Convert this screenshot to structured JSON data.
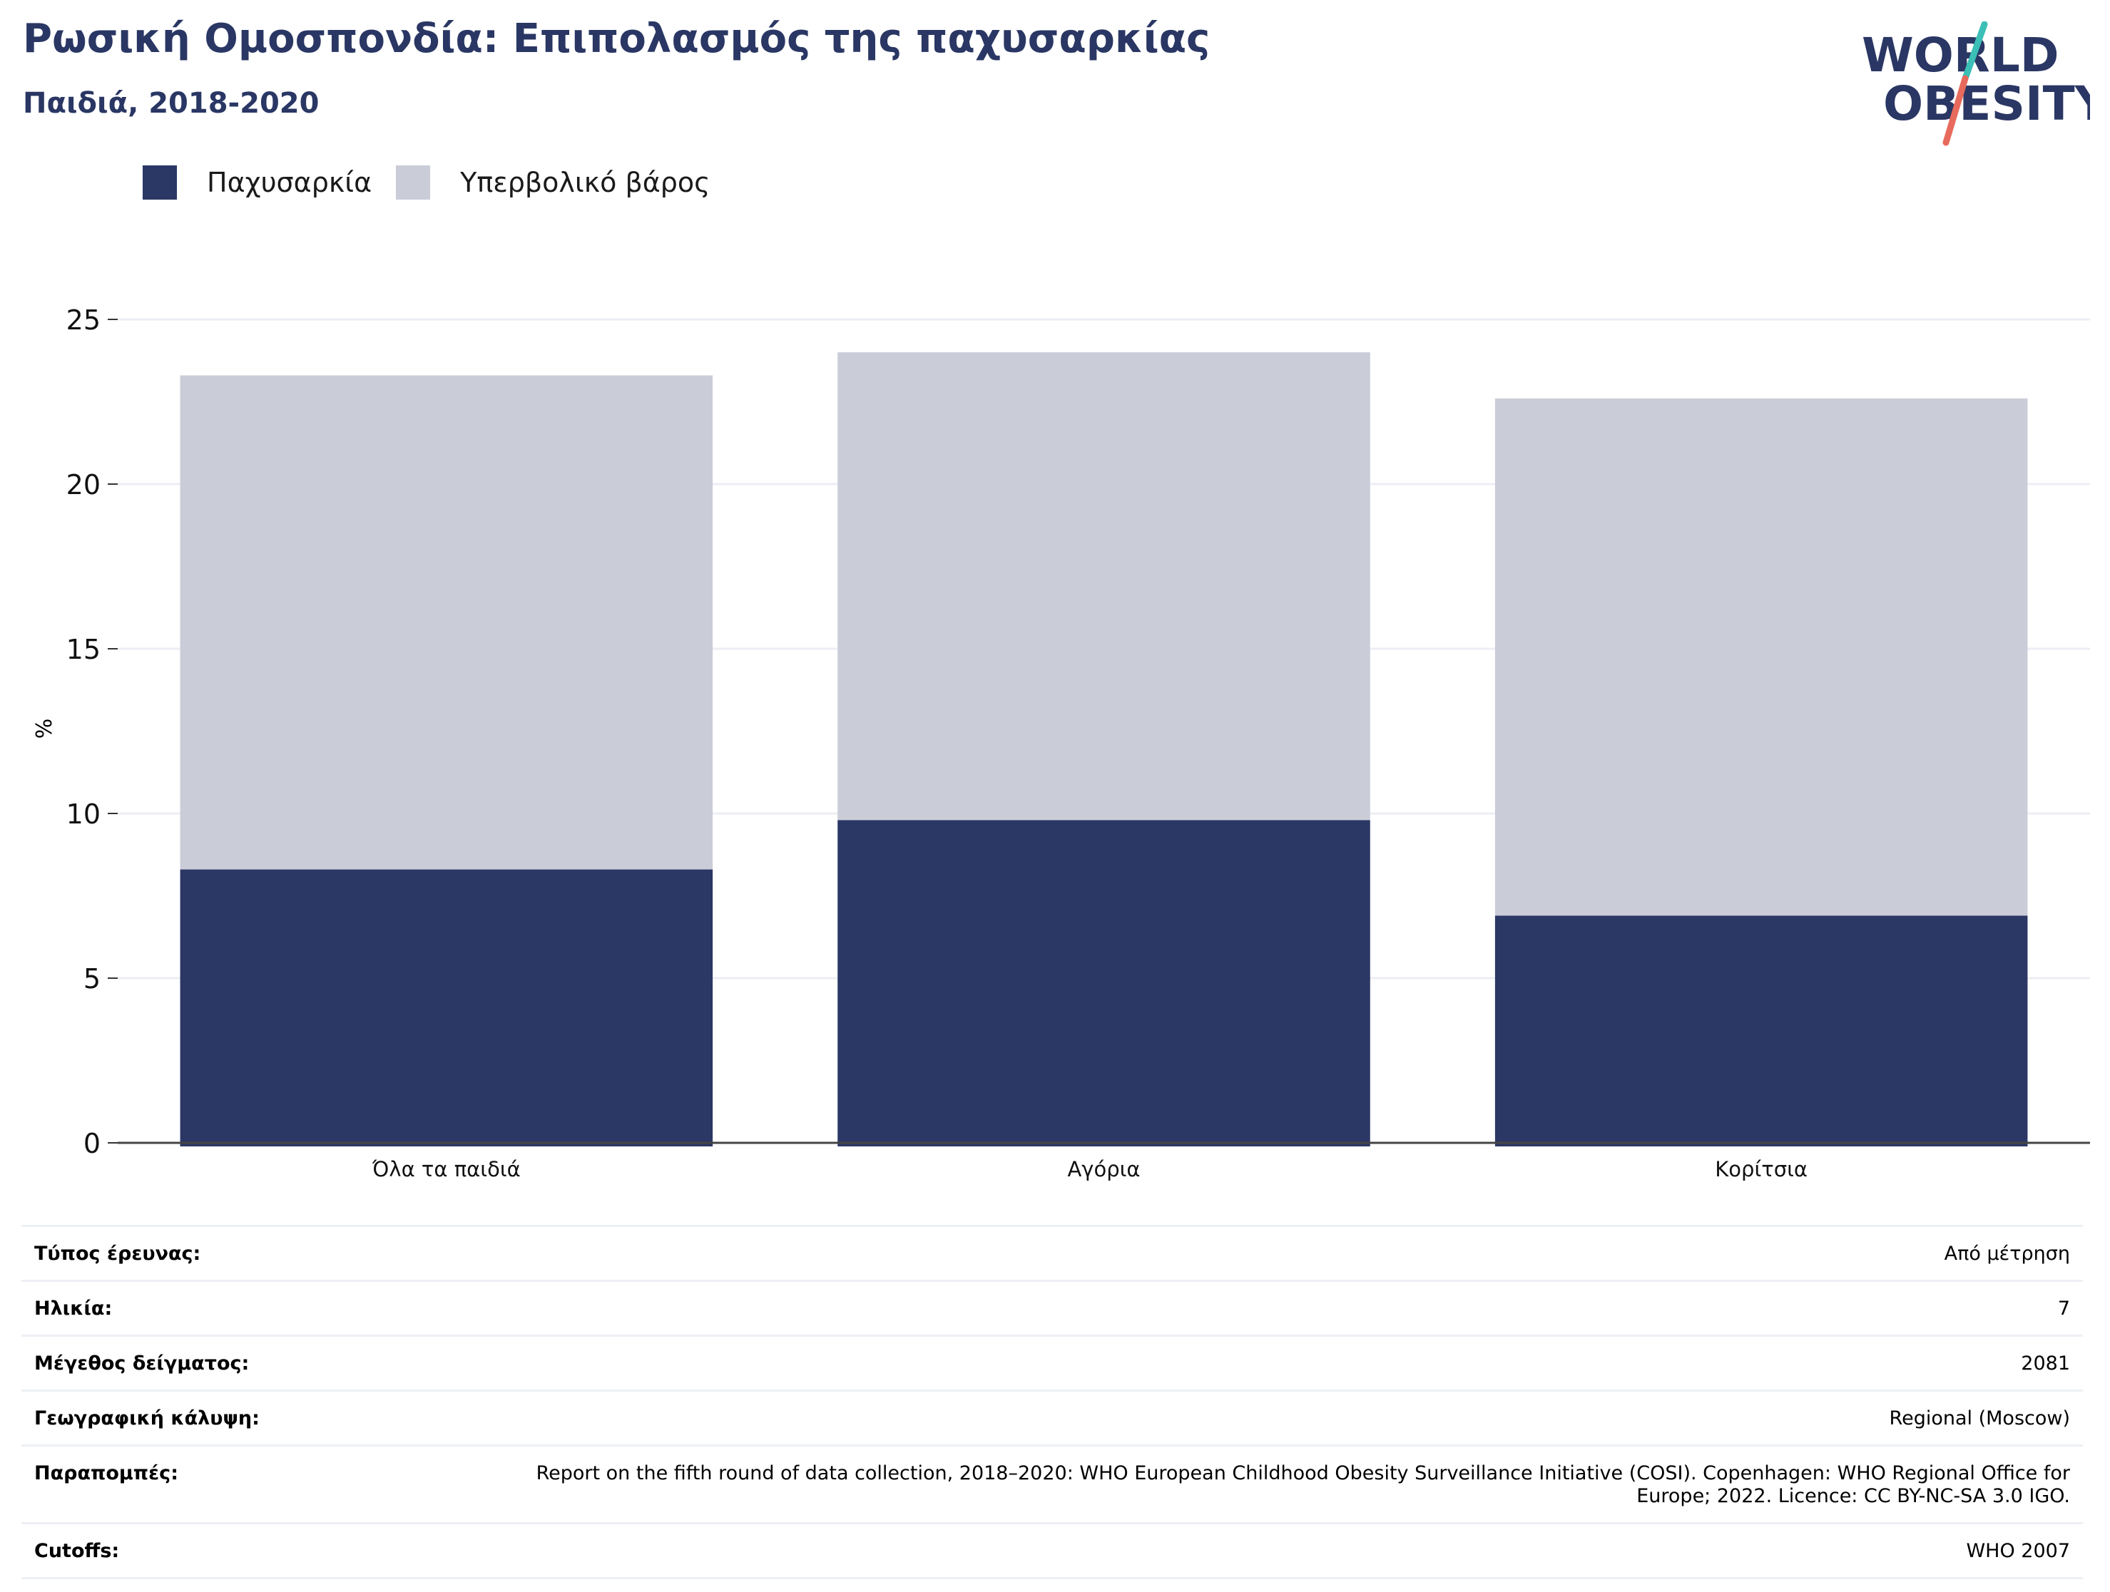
{
  "title": "Ρωσική Ομοσπονδία: Επιπολασμός της παχυσαρκίας",
  "subtitle": "Παιδιά, 2018-2020",
  "logo": {
    "line1": "WORLD",
    "line2": "OBESITY"
  },
  "colors": {
    "obesity": "#2b3765",
    "overweight": "#caccd8",
    "title": "#2a3764",
    "grid": "#eceef4",
    "logo_teal": "#3bbfb6",
    "logo_coral": "#e86a5c"
  },
  "chart_data": {
    "type": "bar",
    "stacked": true,
    "categories": [
      "Όλα τα παιδιά",
      "Αγόρια",
      "Κορίτσια"
    ],
    "series": [
      {
        "name": "Παχυσαρκία",
        "values": [
          8.3,
          9.8,
          6.9
        ]
      },
      {
        "name": "Υπερβολικό βάρος",
        "values": [
          15.0,
          14.2,
          15.7
        ]
      }
    ],
    "ylabel": "%",
    "ylim": [
      0,
      25
    ],
    "yticks": [
      0,
      5,
      10,
      15,
      20,
      25
    ],
    "grid": true,
    "legend": "top-left"
  },
  "info": [
    {
      "label": "Τύπος έρευνας:",
      "value": "Από μέτρηση"
    },
    {
      "label": "Ηλικία:",
      "value": "7"
    },
    {
      "label": "Μέγεθος δείγματος:",
      "value": "2081"
    },
    {
      "label": "Γεωγραφική κάλυψη:",
      "value": "Regional (Moscow)"
    },
    {
      "label": "Παραπομπές:",
      "value": "Report on the fifth round of data collection, 2018–2020: WHO European Childhood Obesity Surveillance Initiative (COSI). Copenhagen: WHO Regional Office for Europe; 2022. Licence: CC BY-NC-SA 3.0 IGO."
    },
    {
      "label": "Cutoffs:",
      "value": "WHO 2007"
    }
  ]
}
